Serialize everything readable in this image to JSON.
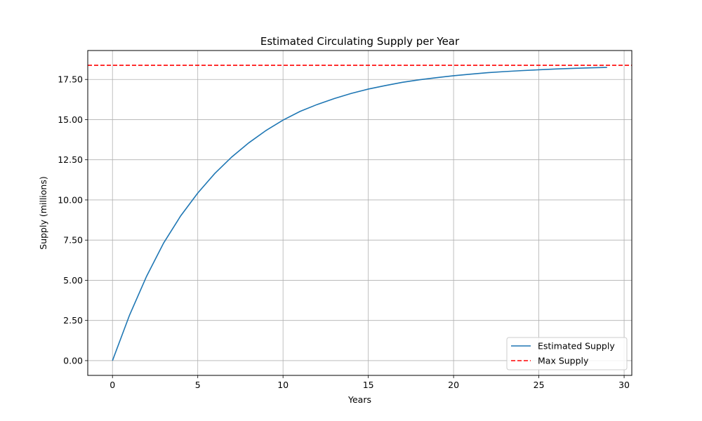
{
  "chart_data": {
    "type": "line",
    "title": "Estimated Circulating Supply per Year",
    "xlabel": "Years",
    "ylabel": "Supply (millions)",
    "xlim": [
      -1.45,
      30.45
    ],
    "ylim": [
      -0.92,
      19.3
    ],
    "x_ticks": [
      0,
      5,
      10,
      15,
      20,
      25,
      30
    ],
    "y_ticks": [
      0.0,
      2.5,
      5.0,
      7.5,
      10.0,
      12.5,
      15.0,
      17.5
    ],
    "x_tick_labels": [
      "0",
      "5",
      "10",
      "15",
      "20",
      "25",
      "30"
    ],
    "y_tick_labels": [
      "0.00",
      "2.50",
      "5.00",
      "7.50",
      "10.00",
      "12.50",
      "15.00",
      "17.50"
    ],
    "grid": true,
    "legend_position": "lower-right",
    "series": [
      {
        "name": "Estimated Supply",
        "color": "#1f77b4",
        "style": "solid",
        "x": [
          0,
          1,
          2,
          3,
          4,
          5,
          6,
          7,
          8,
          9,
          10,
          11,
          12,
          13,
          14,
          15,
          16,
          17,
          18,
          19,
          20,
          21,
          22,
          23,
          24,
          25,
          26,
          27,
          28,
          29
        ],
        "values": [
          0.0,
          2.83,
          5.25,
          7.32,
          9.01,
          10.43,
          11.65,
          12.68,
          13.56,
          14.32,
          14.97,
          15.51,
          15.94,
          16.31,
          16.63,
          16.9,
          17.12,
          17.32,
          17.48,
          17.61,
          17.73,
          17.83,
          17.92,
          17.99,
          18.05,
          18.1,
          18.15,
          18.19,
          18.22,
          18.25
        ]
      },
      {
        "name": "Max Supply",
        "color": "#ff0000",
        "style": "dashed",
        "value": 18.38
      }
    ]
  }
}
